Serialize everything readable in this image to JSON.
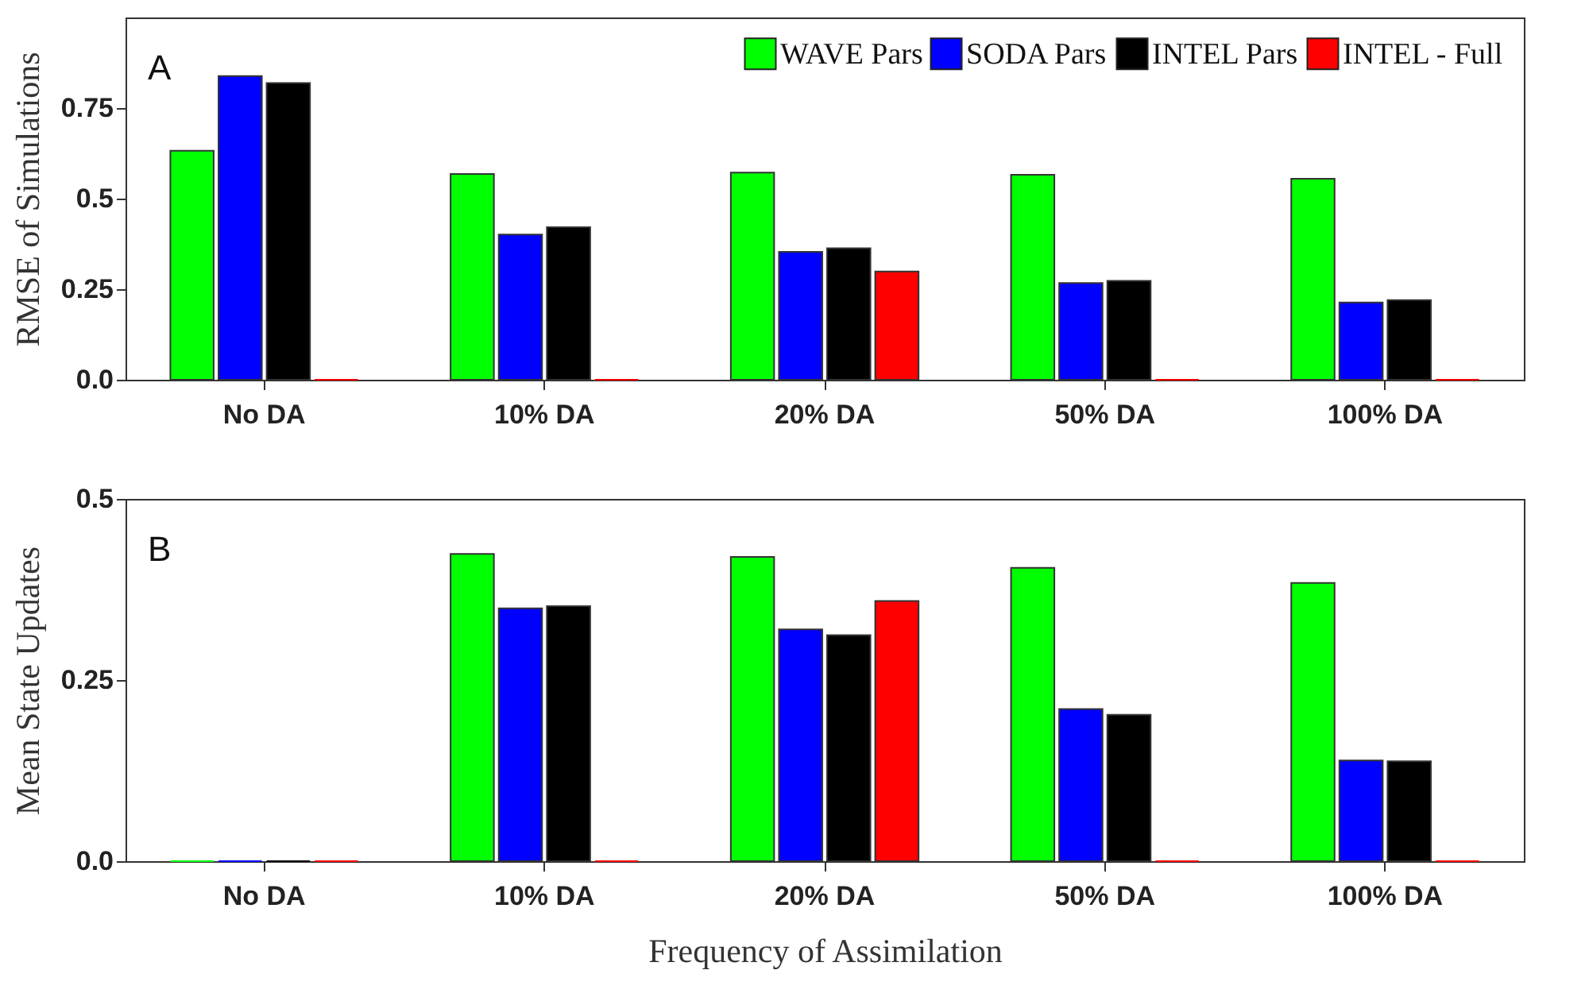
{
  "chart_data": [
    {
      "type": "bar",
      "ylabel": "RMSE of Simulations",
      "annotations": [
        "A"
      ],
      "categories": [
        "No DA",
        "10% DA",
        "20% DA",
        "50% DA",
        "100% DA"
      ],
      "series": [
        {
          "name": "WAVE Pars",
          "color": "#00ff00",
          "values": [
            0.632,
            0.568,
            0.572,
            0.566,
            0.555
          ]
        },
        {
          "name": "SODA Pars",
          "color": "#0000ff",
          "values": [
            0.838,
            0.401,
            0.353,
            0.267,
            0.213
          ]
        },
        {
          "name": "INTEL Pars",
          "color": "#000000",
          "values": [
            0.819,
            0.421,
            0.363,
            0.273,
            0.22
          ]
        },
        {
          "name": "INTEL - Full",
          "color": "#ff0000",
          "values": [
            0,
            0,
            0.299,
            0,
            0
          ]
        }
      ],
      "ylim": [
        0,
        1
      ],
      "yticks": [
        {
          "value": 0,
          "label": "0.0"
        },
        0.25,
        0.5,
        0.75
      ],
      "grid": false,
      "legend": "top right"
    },
    {
      "type": "bar",
      "ylabel": "Mean State Updates",
      "xlabel": "Frequency of Assimilation",
      "annotations": [
        "B"
      ],
      "categories": [
        "No DA",
        "10% DA",
        "20% DA",
        "50% DA",
        "100% DA"
      ],
      "series": [
        {
          "color": "#00ff00",
          "values": [
            0,
            0.424,
            0.42,
            0.405,
            0.384
          ]
        },
        {
          "color": "#0000ff",
          "values": [
            0,
            0.349,
            0.32,
            0.21,
            0.139
          ]
        },
        {
          "color": "#000000",
          "values": [
            0,
            0.352,
            0.312,
            0.202,
            0.138
          ]
        },
        {
          "color": "#ff0000",
          "values": [
            0,
            0,
            0.359,
            0,
            0
          ]
        }
      ],
      "ylim": [
        0,
        0.5
      ],
      "yticks": [
        {
          "value": 0,
          "label": "0.0"
        },
        0.25,
        0.5
      ],
      "grid": false
    }
  ]
}
